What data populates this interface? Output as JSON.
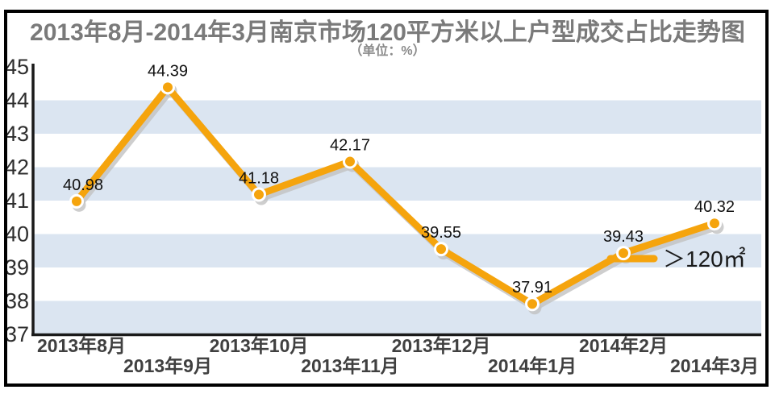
{
  "chart_data": {
    "type": "line",
    "title": "2013年8月-2014年3月南京市场120平方米以上户型成交占比走势图",
    "subtitle": "（单位：%）",
    "unit": "%",
    "categories": [
      "2013年8月",
      "2013年9月",
      "2013年10月",
      "2013年11月",
      "2013年12月",
      "2014年1月",
      "2014年2月",
      "2014年3月"
    ],
    "series": [
      {
        "name": "＞120㎡",
        "values": [
          40.98,
          44.39,
          41.18,
          42.17,
          39.55,
          37.91,
          39.43,
          40.32
        ]
      }
    ],
    "y_ticks": [
      45,
      44,
      43,
      42,
      41,
      40,
      39,
      38,
      37
    ],
    "ylim": [
      37,
      45
    ],
    "xlabel": "",
    "ylabel": "",
    "grid": "alternating horizontal bands between odd-even gridlines (43-44, 41-42, 39-40, 37-38)",
    "x_label_layout": "staggered two rows",
    "legend_position": "inside plot, right of 2014年2月 data point",
    "legend_label": "＞120㎡",
    "data_labels": [
      "40.98",
      "44.39",
      "41.18",
      "42.17",
      "39.55",
      "37.91",
      "39.43",
      "40.32"
    ],
    "colors": {
      "line": "#F5A40D",
      "marker_fill": "#F5A40D",
      "marker_ring": "#FFFFFF",
      "shadow": "#C2C2C2",
      "band": "#DBE5F1",
      "axis": "#1A1A1A",
      "title_text": "#7A7A7A",
      "subtitle_text": "#8B8B8B",
      "tick_text": "#2E2E2E",
      "x_label_text": "#404040",
      "value_label_text": "#111111",
      "legend_text": "#1A1A1A",
      "frame": "#000000",
      "background": "#FFFFFF"
    }
  }
}
